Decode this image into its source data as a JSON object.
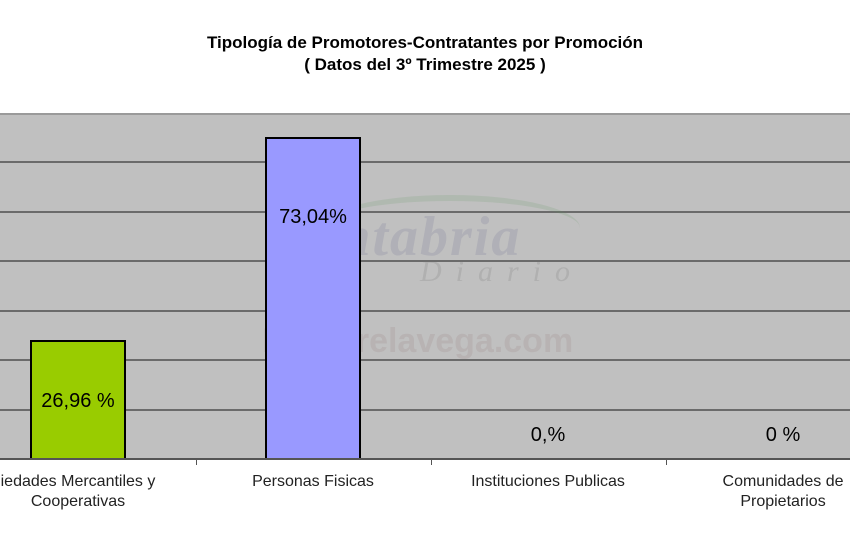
{
  "chart_data": {
    "type": "bar",
    "title": "Tipología de Promotores-Contratantes por Promoción",
    "subtitle": "( Datos del 3º Trimestre 2025 )",
    "categories": [
      "Sociedades Mercantiles y Cooperativas",
      "Personas Fisicas",
      "Instituciones Publicas",
      "Comunidades de Propietarios"
    ],
    "category_lines": [
      [
        "iedades Mercantiles y",
        "Cooperativas"
      ],
      [
        "Personas Fisicas",
        ""
      ],
      [
        "Instituciones Publicas",
        ""
      ],
      [
        "Comunidades de",
        "Propietarios"
      ]
    ],
    "values": [
      26.96,
      73.04,
      0,
      0
    ],
    "data_labels": [
      "26,96 %",
      "73,04%",
      "0,%",
      "0 %"
    ],
    "colors": [
      "#99cc00",
      "#9999ff",
      "#9999ff",
      "#9999ff"
    ],
    "xlabel": "",
    "ylabel": "",
    "ylim": [
      0,
      78.5
    ],
    "grid": true,
    "gridline_count": 7,
    "legend": "none",
    "plot_background": "#c0c0c0"
  },
  "watermark": {
    "line1": "Cantabria",
    "line2": "Diario",
    "line3": "EsTorrelavega.com"
  }
}
